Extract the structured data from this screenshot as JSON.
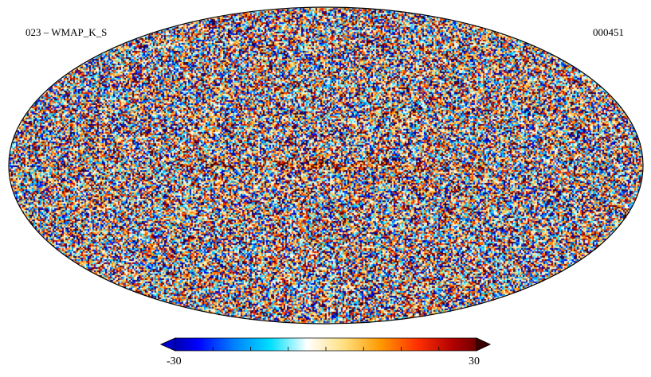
{
  "map": {
    "title": "023 – WMAP_K_S",
    "id_label": "000451",
    "projection": "mollweide",
    "field": "noise-dominated sky temperature map with galactic plane emission"
  },
  "colorbar": {
    "min_label": "-30",
    "max_label": "30",
    "min_value": -30,
    "max_value": 30,
    "tick_count": 7,
    "colors": [
      "#00007f",
      "#0000ff",
      "#0080ff",
      "#00e0ff",
      "#ffffff",
      "#ffe080",
      "#ff9a00",
      "#ff3000",
      "#b00000",
      "#4a0000"
    ]
  }
}
